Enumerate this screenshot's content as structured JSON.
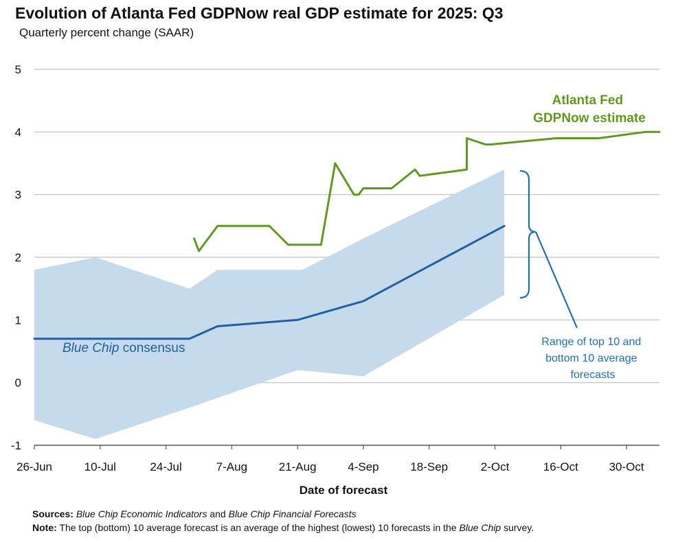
{
  "header": {
    "title": "Evolution of Atlanta Fed GDPNow real GDP estimate for 2025: Q3",
    "subtitle": "Quarterly percent change (SAAR)"
  },
  "footer": {
    "sources_label": "Sources:",
    "sources_italic_1": "Blue Chip Economic Indicators",
    "sources_mid": " and ",
    "sources_italic_2": "Blue Chip Financial Forecasts",
    "note_label": "Note:",
    "note_text": " The top (bottom) 10 average forecast is an average of the highest (lowest) 10 forecasts in the ",
    "note_italic": "Blue Chip",
    "note_end": " survey."
  },
  "chart_data": {
    "type": "line",
    "title": "Evolution of Atlanta Fed GDPNow real GDP estimate for 2025: Q3",
    "subtitle": "Quarterly percent change (SAAR)",
    "xlabel": "Date of forecast",
    "ylabel": "",
    "ylim": [
      -1,
      5
    ],
    "yticks": [
      "5",
      "4",
      "3",
      "2",
      "1",
      "0",
      "-1"
    ],
    "xlim": [
      "2025-06-26",
      "2025-11-06"
    ],
    "xticks": [
      {
        "date": "2025-06-26",
        "label": "26-Jun"
      },
      {
        "date": "2025-07-10",
        "label": "10-Jul"
      },
      {
        "date": "2025-07-24",
        "label": "24-Jul"
      },
      {
        "date": "2025-08-07",
        "label": "7-Aug"
      },
      {
        "date": "2025-08-21",
        "label": "21-Aug"
      },
      {
        "date": "2025-09-04",
        "label": "4-Sep"
      },
      {
        "date": "2025-09-18",
        "label": "18-Sep"
      },
      {
        "date": "2025-10-02",
        "label": "2-Oct"
      },
      {
        "date": "2025-10-16",
        "label": "16-Oct"
      },
      {
        "date": "2025-10-30",
        "label": "30-Oct"
      }
    ],
    "grid": "horizontal",
    "series": [
      {
        "name": "GDPNow",
        "color": "#5f9a1f",
        "points": [
          [
            "2025-07-30",
            2.3
          ],
          [
            "2025-07-31",
            2.1
          ],
          [
            "2025-08-04",
            2.5
          ],
          [
            "2025-08-15",
            2.5
          ],
          [
            "2025-08-19",
            2.2
          ],
          [
            "2025-08-26",
            2.2
          ],
          [
            "2025-08-29",
            3.5
          ],
          [
            "2025-09-02",
            3.0
          ],
          [
            "2025-09-03",
            3.0
          ],
          [
            "2025-09-04",
            3.1
          ],
          [
            "2025-09-10",
            3.1
          ],
          [
            "2025-09-15",
            3.4
          ],
          [
            "2025-09-16",
            3.3
          ],
          [
            "2025-09-26",
            3.4
          ],
          [
            "2025-09-26",
            3.9
          ],
          [
            "2025-09-30",
            3.8
          ],
          [
            "2025-10-01",
            3.8
          ],
          [
            "2025-10-15",
            3.9
          ],
          [
            "2025-10-24",
            3.9
          ],
          [
            "2025-11-03",
            4.0
          ],
          [
            "2025-11-06",
            4.0
          ]
        ]
      },
      {
        "name": "Blue Chip consensus",
        "color": "#1f5fa3",
        "points": [
          [
            "2025-06-26",
            0.7
          ],
          [
            "2025-07-10",
            0.7
          ],
          [
            "2025-07-29",
            0.7
          ],
          [
            "2025-08-04",
            0.9
          ],
          [
            "2025-08-21",
            1.0
          ],
          [
            "2025-09-04",
            1.3
          ],
          [
            "2025-10-04",
            2.5
          ]
        ]
      },
      {
        "name": "Range of top 10 and bottom 10 average forecasts",
        "type": "area",
        "color": "#c5dbeb",
        "upper": [
          [
            "2025-06-26",
            1.8
          ],
          [
            "2025-07-09",
            2.0
          ],
          [
            "2025-07-29",
            1.5
          ],
          [
            "2025-08-04",
            1.8
          ],
          [
            "2025-08-22",
            1.8
          ],
          [
            "2025-09-04",
            2.3
          ],
          [
            "2025-10-04",
            3.4
          ]
        ],
        "lower": [
          [
            "2025-06-26",
            -0.6
          ],
          [
            "2025-07-09",
            -0.9
          ],
          [
            "2025-07-29",
            -0.4
          ],
          [
            "2025-08-21",
            0.2
          ],
          [
            "2025-09-04",
            0.1
          ],
          [
            "2025-10-04",
            1.4
          ]
        ]
      }
    ],
    "annotations": {
      "gdpnow_label": [
        "Atlanta Fed",
        "GDPNow estimate"
      ],
      "bluechip_italic": "Blue Chip",
      "bluechip_rest": " consensus",
      "range_label": [
        "Range of top 10 and",
        "bottom 10 average",
        "forecasts"
      ]
    }
  }
}
